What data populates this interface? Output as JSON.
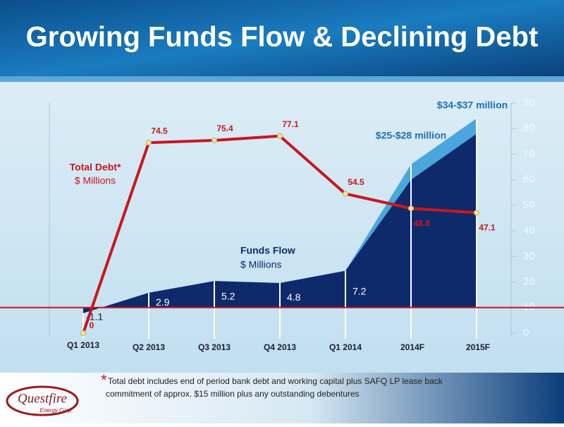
{
  "chart_data": {
    "type": "line-area",
    "title": "Growing Funds Flow & Declining Debt",
    "categories": [
      "Q1 2013",
      "Q2 2013",
      "Q3 2013",
      "Q4 2013",
      "Q1 2014",
      "2014F",
      "2015F"
    ],
    "series": [
      {
        "name": "Total Debt*",
        "unit": "$ Millions",
        "color": "#c8171e",
        "values": [
          0,
          74.5,
          75.4,
          77.1,
          54.5,
          48.8,
          47.1
        ]
      },
      {
        "name": "Funds Flow",
        "unit": "$ Millions",
        "color": "#0f2a6b",
        "axis": "y2",
        "values": [
          -1.1,
          2.9,
          5.2,
          4.8,
          7.2,
          25,
          34
        ]
      },
      {
        "color": "#4aa6dd",
        "axis": "y2",
        "values": [
          null,
          null,
          null,
          null,
          7.2,
          28,
          37
        ]
      }
    ],
    "annotations": [
      "$25-$28 million",
      "$34-$37 million"
    ],
    "ylim": [
      0,
      90
    ],
    "yticks": [
      0,
      10,
      20,
      30,
      40,
      50,
      60,
      70,
      80,
      90
    ],
    "y2lim": [
      -5,
      40
    ],
    "footnote": [
      "Total debt includes end of period bank debt and working capital plus SAFQ LP lease back",
      "commitment of approx. $15 million plus any outstanding debentures"
    ],
    "footnote_mark": "*"
  },
  "logo": {
    "name": "Questfire",
    "sub": "Energy Corp."
  }
}
